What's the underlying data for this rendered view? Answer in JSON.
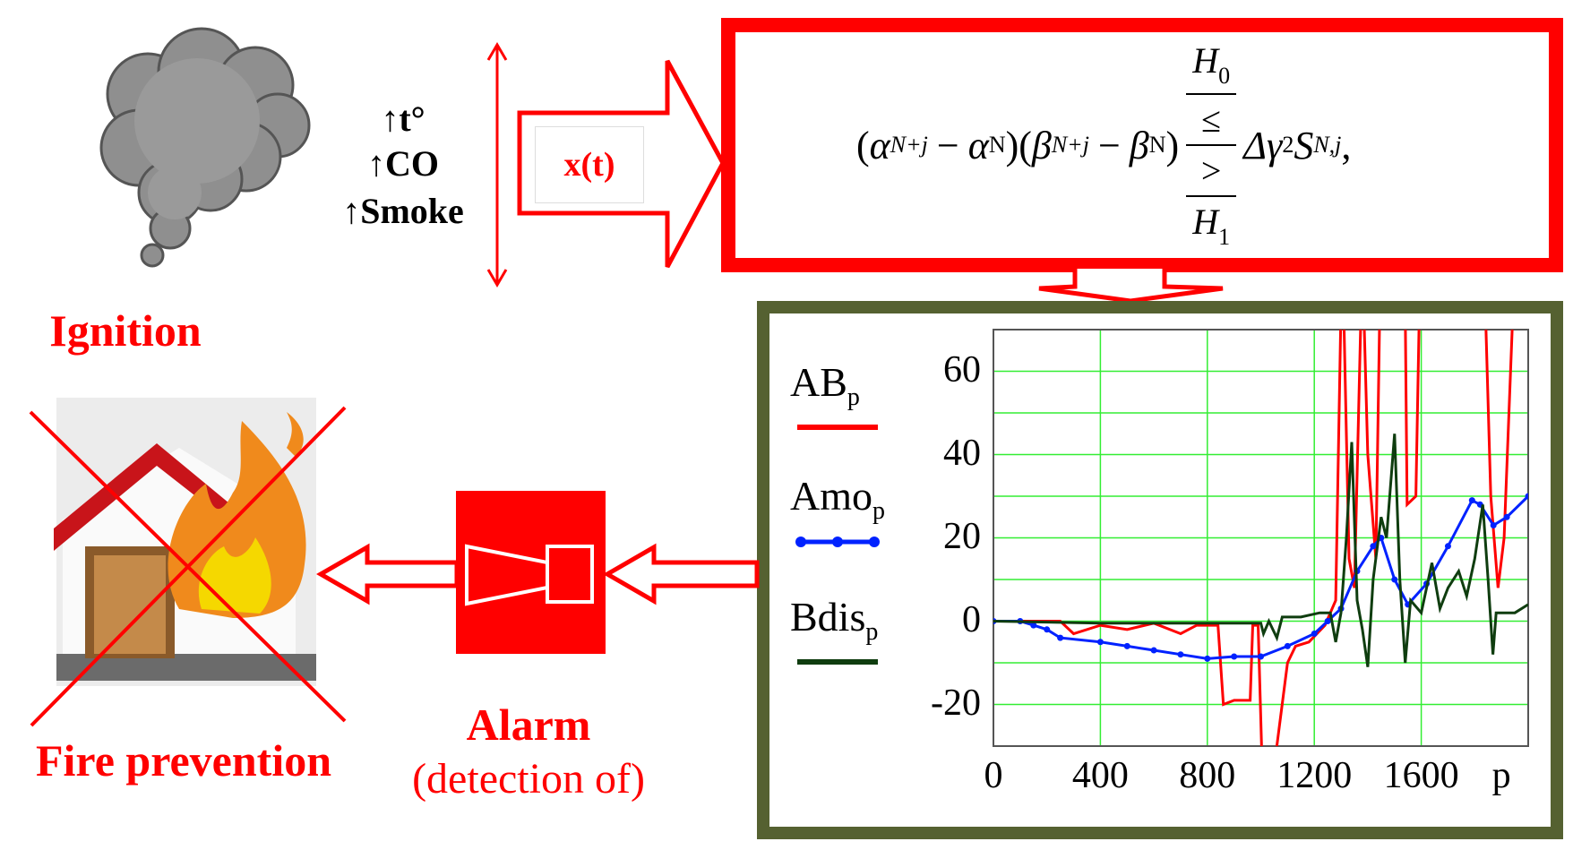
{
  "sensors": [
    "↑t°",
    "↑CO",
    "↑Smoke"
  ],
  "ignition_label": "Ignition",
  "signal_label": "x(t)",
  "formula": {
    "alpha": "α",
    "beta": "β",
    "minus": "−",
    "sub_nj": "N+j",
    "sub_n": "N",
    "h0": "H",
    "h0_sub": "0",
    "h1": "H",
    "h1_sub": "1",
    "le": "≤",
    "gt": ">",
    "tail": "Δγ",
    "sq": "2",
    "s": "S",
    "s_sub": "N,j",
    "comma": ","
  },
  "alarm": {
    "title": "Alarm",
    "subtitle": "(detection of)"
  },
  "prevention_label": "Fire prevention",
  "colors": {
    "accent": "#ff0000",
    "chart_frame": "#556131",
    "grid": "#33ee33",
    "ab": "#ff0000",
    "amo": "#0022ff",
    "bdis": "#0f3d0f"
  },
  "chart_data": {
    "type": "line",
    "xlabel": "p",
    "xlim": [
      0,
      2000
    ],
    "ylim": [
      -30,
      70
    ],
    "x_ticks": [
      0,
      400,
      800,
      1200,
      1600
    ],
    "y_ticks": [
      60,
      40,
      20,
      0,
      -20
    ],
    "grid": true,
    "legend": "left",
    "series": [
      {
        "name": "AB",
        "sub": "p",
        "color": "#ff0000",
        "points": [
          [
            0,
            0
          ],
          [
            150,
            0
          ],
          [
            250,
            0
          ],
          [
            300,
            -3
          ],
          [
            400,
            -1
          ],
          [
            500,
            -2
          ],
          [
            600,
            -0.5
          ],
          [
            700,
            -3
          ],
          [
            760,
            -1
          ],
          [
            840,
            -1
          ],
          [
            860,
            -20
          ],
          [
            900,
            -19
          ],
          [
            960,
            -19
          ],
          [
            970,
            -1
          ],
          [
            990,
            -1
          ],
          [
            1005,
            -35
          ],
          [
            1050,
            -35
          ],
          [
            1100,
            -10
          ],
          [
            1130,
            -6
          ],
          [
            1180,
            -5
          ],
          [
            1240,
            -1
          ],
          [
            1280,
            5
          ],
          [
            1300,
            75
          ],
          [
            1310,
            75
          ],
          [
            1330,
            15
          ],
          [
            1350,
            8
          ],
          [
            1375,
            75
          ],
          [
            1385,
            75
          ],
          [
            1400,
            40
          ],
          [
            1430,
            15
          ],
          [
            1445,
            75
          ],
          [
            1540,
            75
          ],
          [
            1547,
            28
          ],
          [
            1580,
            30
          ],
          [
            1593,
            75
          ],
          [
            1840,
            75
          ],
          [
            1860,
            30
          ],
          [
            1887,
            8
          ],
          [
            1910,
            20
          ],
          [
            1943,
            75
          ]
        ]
      },
      {
        "name": "Amo",
        "sub": "p",
        "color": "#0022ff",
        "markers": true,
        "points": [
          [
            0,
            0
          ],
          [
            100,
            0
          ],
          [
            150,
            -1
          ],
          [
            200,
            -2
          ],
          [
            250,
            -4
          ],
          [
            400,
            -5
          ],
          [
            500,
            -6
          ],
          [
            600,
            -7
          ],
          [
            700,
            -8
          ],
          [
            800,
            -9
          ],
          [
            900,
            -8.5
          ],
          [
            1000,
            -8.5
          ],
          [
            1100,
            -6
          ],
          [
            1200,
            -3
          ],
          [
            1250,
            0
          ],
          [
            1300,
            3
          ],
          [
            1360,
            12
          ],
          [
            1420,
            18
          ],
          [
            1450,
            20
          ],
          [
            1500,
            10
          ],
          [
            1550,
            4
          ],
          [
            1620,
            9
          ],
          [
            1700,
            18
          ],
          [
            1790,
            29
          ],
          [
            1820,
            28
          ],
          [
            1870,
            23
          ],
          [
            1920,
            25
          ],
          [
            2000,
            30
          ]
        ]
      },
      {
        "name": "Bdis",
        "sub": "p",
        "color": "#0f3d0f",
        "points": [
          [
            0,
            0
          ],
          [
            400,
            -0.5
          ],
          [
            800,
            -0.5
          ],
          [
            1000,
            -0.5
          ],
          [
            1010,
            -3
          ],
          [
            1030,
            0
          ],
          [
            1060,
            -4
          ],
          [
            1080,
            1
          ],
          [
            1150,
            1
          ],
          [
            1220,
            2
          ],
          [
            1260,
            2
          ],
          [
            1280,
            -5
          ],
          [
            1300,
            2
          ],
          [
            1320,
            20
          ],
          [
            1340,
            43
          ],
          [
            1360,
            5
          ],
          [
            1380,
            -2
          ],
          [
            1400,
            -11
          ],
          [
            1420,
            10
          ],
          [
            1450,
            25
          ],
          [
            1470,
            20
          ],
          [
            1500,
            45
          ],
          [
            1520,
            10
          ],
          [
            1540,
            -10
          ],
          [
            1560,
            5
          ],
          [
            1600,
            2
          ],
          [
            1640,
            14
          ],
          [
            1670,
            3
          ],
          [
            1700,
            8
          ],
          [
            1740,
            12
          ],
          [
            1770,
            6
          ],
          [
            1800,
            15
          ],
          [
            1830,
            28
          ],
          [
            1850,
            10
          ],
          [
            1868,
            -8
          ],
          [
            1880,
            2
          ],
          [
            1950,
            2
          ],
          [
            2000,
            4
          ]
        ]
      }
    ]
  }
}
